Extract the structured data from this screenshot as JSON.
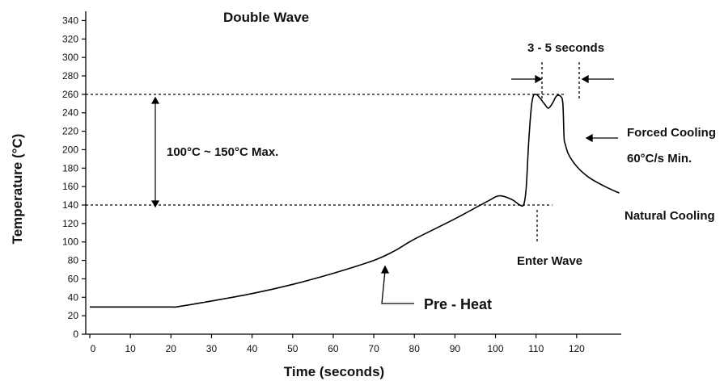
{
  "chart_data": {
    "type": "line",
    "title": "Double Wave",
    "xlabel": "Time (seconds)",
    "ylabel": "Temperature (°C)",
    "xlim": [
      -1,
      131
    ],
    "ylim": [
      0,
      350
    ],
    "x_ticks": [
      0,
      10,
      20,
      30,
      40,
      50,
      60,
      70,
      80,
      90,
      100,
      110,
      120
    ],
    "y_ticks": [
      0,
      20,
      40,
      60,
      80,
      100,
      120,
      140,
      160,
      180,
      200,
      220,
      240,
      260,
      280,
      300,
      320,
      340
    ],
    "grid": false,
    "legend": "none",
    "series": [
      {
        "x": [
          0,
          10,
          20,
          22,
          30,
          40,
          50,
          60,
          70,
          75,
          80,
          90,
          98,
          101,
          104,
          106,
          107,
          107.6,
          108.2,
          109,
          110,
          112,
          113,
          114,
          115,
          116,
          116.6,
          116.9,
          117.2,
          118,
          120,
          123,
          127,
          130.5
        ],
        "y": [
          29.5,
          29.5,
          29.5,
          30,
          36,
          44,
          54,
          66,
          80,
          90,
          103,
          125,
          144,
          150,
          146,
          140,
          141,
          160,
          210,
          252,
          260,
          250,
          245,
          250,
          258,
          258,
          250,
          213,
          206,
          195,
          182,
          170,
          160,
          153
        ],
        "color": "#000000"
      }
    ],
    "reference_lines": [
      {
        "y": 260,
        "x_from": -1,
        "x_to": 117
      },
      {
        "y": 140,
        "x_from": -1,
        "x_to": 114
      }
    ],
    "annotations": {
      "range_label": "100°C ~  150°C Max.",
      "duration_label": "3 - 5 seconds",
      "enter_wave": "Enter Wave",
      "pre_heat": "Pre - Heat",
      "forced_cooling": "Forced Cooling",
      "cooling_rate": "60°C/s  Min.",
      "natural_cooling": "Natural Cooling"
    }
  }
}
